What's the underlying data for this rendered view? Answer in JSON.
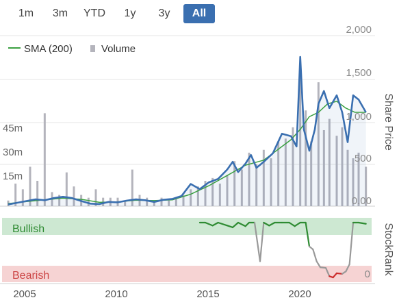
{
  "range_buttons": [
    "1m",
    "3m",
    "YTD",
    "1y",
    "3y",
    "All"
  ],
  "active_range": "All",
  "legend": {
    "sma_label": "SMA (200)",
    "volume_label": "Volume"
  },
  "colors": {
    "price": "#3a6fb0",
    "sma": "#3aa040",
    "volume": "#b4b4bc",
    "bullish_band": "#cde8d2",
    "bearish_band": "#f6d3d3",
    "rank_bull": "#2e8b32",
    "rank_mid": "#999999",
    "rank_bear": "#cc2a2a",
    "active_button": "#3a6fb0"
  },
  "stockrank": {
    "title": "StockRank",
    "bullish_label": "Bullish",
    "bearish_label": "Bearish",
    "zero_label": "0"
  },
  "chart_data": {
    "type": "line",
    "x_ticks": [
      "2005",
      "2010",
      "2015",
      "2020"
    ],
    "price_axis": {
      "label": "Share Price",
      "ticks": [
        "0.00",
        "500",
        "1,000",
        "1,500",
        "2,000"
      ],
      "range": [
        0,
        2000
      ]
    },
    "volume_axis": {
      "ticks": [
        "15m",
        "30m",
        "45m"
      ],
      "range": [
        0,
        90
      ]
    },
    "series": [
      {
        "name": "",
        "key": "price",
        "points": [
          [
            2004.0,
            20
          ],
          [
            2004.5,
            40
          ],
          [
            2005.0,
            60
          ],
          [
            2005.5,
            80
          ],
          [
            2006.0,
            70
          ],
          [
            2006.5,
            95
          ],
          [
            2007.0,
            110
          ],
          [
            2007.5,
            95
          ],
          [
            2008.0,
            60
          ],
          [
            2008.5,
            30
          ],
          [
            2009.0,
            25
          ],
          [
            2009.5,
            50
          ],
          [
            2010.0,
            45
          ],
          [
            2010.5,
            65
          ],
          [
            2011.0,
            80
          ],
          [
            2011.5,
            70
          ],
          [
            2012.0,
            50
          ],
          [
            2012.5,
            75
          ],
          [
            2013.0,
            85
          ],
          [
            2013.5,
            120
          ],
          [
            2014.0,
            260
          ],
          [
            2014.5,
            200
          ],
          [
            2015.0,
            280
          ],
          [
            2015.5,
            320
          ],
          [
            2016.0,
            430
          ],
          [
            2016.3,
            520
          ],
          [
            2016.6,
            400
          ],
          [
            2017.0,
            500
          ],
          [
            2017.3,
            600
          ],
          [
            2017.6,
            450
          ],
          [
            2018.0,
            520
          ],
          [
            2018.5,
            620
          ],
          [
            2019.0,
            850
          ],
          [
            2019.5,
            820
          ],
          [
            2019.8,
            700
          ],
          [
            2020.0,
            1750
          ],
          [
            2020.2,
            900
          ],
          [
            2020.5,
            650
          ],
          [
            2020.8,
            900
          ],
          [
            2021.0,
            1200
          ],
          [
            2021.3,
            1350
          ],
          [
            2021.6,
            1150
          ],
          [
            2022.0,
            1300
          ],
          [
            2022.3,
            1100
          ],
          [
            2022.6,
            750
          ],
          [
            2022.9,
            1300
          ],
          [
            2023.2,
            1250
          ],
          [
            2023.6,
            1100
          ]
        ]
      },
      {
        "name": "SMA (200)",
        "key": "sma",
        "points": [
          [
            2004.0,
            30
          ],
          [
            2005.0,
            55
          ],
          [
            2006.0,
            75
          ],
          [
            2007.0,
            95
          ],
          [
            2008.0,
            80
          ],
          [
            2009.0,
            45
          ],
          [
            2010.0,
            50
          ],
          [
            2011.0,
            70
          ],
          [
            2012.0,
            65
          ],
          [
            2013.0,
            75
          ],
          [
            2014.0,
            140
          ],
          [
            2015.0,
            240
          ],
          [
            2016.0,
            360
          ],
          [
            2017.0,
            480
          ],
          [
            2018.0,
            540
          ],
          [
            2019.0,
            700
          ],
          [
            2019.5,
            780
          ],
          [
            2020.0,
            900
          ],
          [
            2020.5,
            1050
          ],
          [
            2021.0,
            1100
          ],
          [
            2021.5,
            1200
          ],
          [
            2022.0,
            1230
          ],
          [
            2022.5,
            1150
          ],
          [
            2023.0,
            1100
          ],
          [
            2023.6,
            1100
          ]
        ]
      },
      {
        "name": "Volume",
        "key": "volume",
        "points": [
          [
            2004.0,
            2
          ],
          [
            2004.4,
            8
          ],
          [
            2004.8,
            6
          ],
          [
            2005.2,
            14
          ],
          [
            2005.6,
            9
          ],
          [
            2006.0,
            33
          ],
          [
            2006.4,
            5
          ],
          [
            2006.8,
            4
          ],
          [
            2007.2,
            12
          ],
          [
            2007.6,
            7
          ],
          [
            2008.0,
            4
          ],
          [
            2008.4,
            3
          ],
          [
            2008.8,
            6
          ],
          [
            2009.2,
            3
          ],
          [
            2009.6,
            3
          ],
          [
            2010.0,
            3
          ],
          [
            2010.4,
            2
          ],
          [
            2010.8,
            13
          ],
          [
            2011.2,
            4
          ],
          [
            2011.6,
            3
          ],
          [
            2012.0,
            2
          ],
          [
            2012.4,
            3
          ],
          [
            2012.8,
            2
          ],
          [
            2013.2,
            3
          ],
          [
            2013.6,
            4
          ],
          [
            2014.0,
            6
          ],
          [
            2014.4,
            7
          ],
          [
            2014.8,
            9
          ],
          [
            2015.2,
            10
          ],
          [
            2015.6,
            8
          ],
          [
            2016.0,
            11
          ],
          [
            2016.4,
            16
          ],
          [
            2016.8,
            13
          ],
          [
            2017.2,
            19
          ],
          [
            2017.6,
            15
          ],
          [
            2018.0,
            20
          ],
          [
            2018.4,
            17
          ],
          [
            2018.8,
            23
          ],
          [
            2019.2,
            24
          ],
          [
            2019.6,
            28
          ],
          [
            2020.0,
            48
          ],
          [
            2020.3,
            34
          ],
          [
            2020.6,
            23
          ],
          [
            2021.0,
            44
          ],
          [
            2021.3,
            27
          ],
          [
            2021.6,
            31
          ],
          [
            2022.0,
            25
          ],
          [
            2022.3,
            28
          ],
          [
            2022.6,
            20
          ],
          [
            2022.9,
            17
          ],
          [
            2023.2,
            19
          ],
          [
            2023.6,
            14
          ]
        ]
      },
      {
        "name": "StockRank",
        "key": "stockrank",
        "points": [
          [
            2014.5,
            100
          ],
          [
            2014.8,
            100
          ],
          [
            2015.2,
            95
          ],
          [
            2015.5,
            100
          ],
          [
            2016.0,
            95
          ],
          [
            2016.3,
            92
          ],
          [
            2016.6,
            100
          ],
          [
            2017.0,
            94
          ],
          [
            2017.2,
            100
          ],
          [
            2017.5,
            100
          ],
          [
            2017.8,
            35
          ],
          [
            2018.0,
            100
          ],
          [
            2018.3,
            95
          ],
          [
            2018.6,
            100
          ],
          [
            2019.0,
            100
          ],
          [
            2019.4,
            100
          ],
          [
            2019.7,
            94
          ],
          [
            2020.0,
            100
          ],
          [
            2020.3,
            100
          ],
          [
            2020.5,
            60
          ],
          [
            2020.7,
            55
          ],
          [
            2020.9,
            35
          ],
          [
            2021.1,
            25
          ],
          [
            2021.4,
            24
          ],
          [
            2021.6,
            10
          ],
          [
            2021.8,
            8
          ],
          [
            2022.0,
            15
          ],
          [
            2022.3,
            14
          ],
          [
            2022.5,
            18
          ],
          [
            2022.7,
            30
          ],
          [
            2022.9,
            100
          ],
          [
            2023.2,
            100
          ],
          [
            2023.6,
            98
          ]
        ]
      }
    ]
  }
}
